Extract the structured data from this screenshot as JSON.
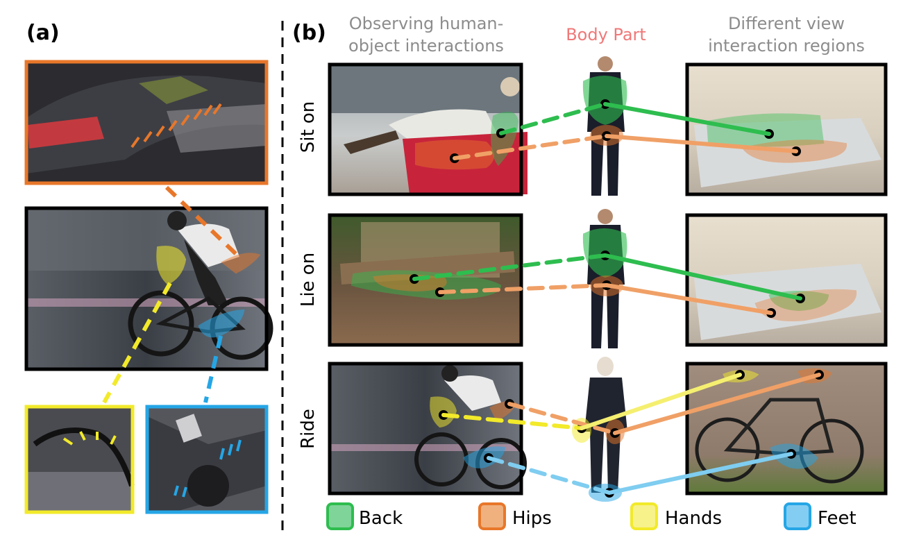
{
  "panel_a": {
    "label": "(a)"
  },
  "panel_b": {
    "label": "(b)",
    "headers": {
      "observing_line1": "Observing human-",
      "observing_line2": "object interactions",
      "body_part": "Body Part",
      "different_line1": "Different view",
      "different_line2": "interaction regions"
    },
    "rows": [
      "Sit on",
      "Lie on",
      "Ride"
    ]
  },
  "legend": [
    {
      "label": "Back",
      "color": "#2ebd4f"
    },
    {
      "label": "Hips",
      "color": "#e8772a"
    },
    {
      "label": "Hands",
      "color": "#f2ea2a"
    },
    {
      "label": "Feet",
      "color": "#25a6e6"
    }
  ],
  "colors": {
    "back": "#2ebd4f",
    "hips": "#e8772a",
    "hands": "#f2ea2a",
    "feet": "#25a6e6",
    "header_gray": "#8c8c8c",
    "body_part_pink": "#f07878"
  }
}
